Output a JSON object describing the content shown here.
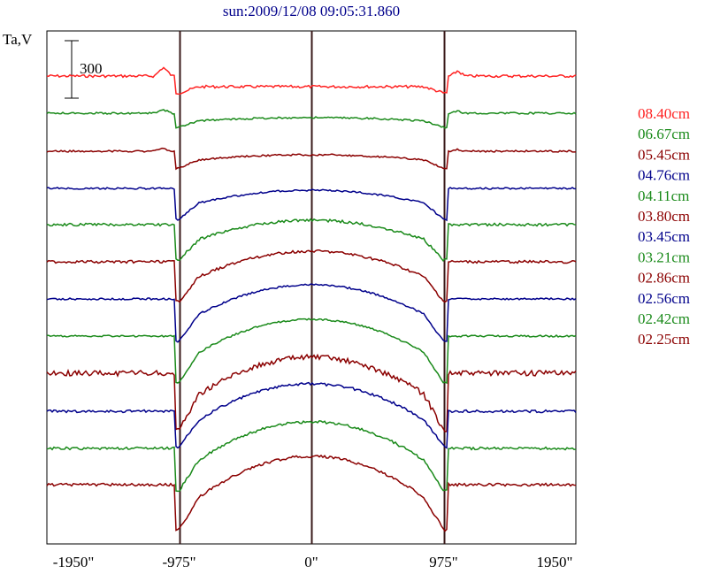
{
  "chart_data": {
    "type": "line",
    "title": "sun:2009/12/08 09:05:31.860",
    "ylabel": "Ta,V",
    "scale_bar_label": "300",
    "scale_bar_value": 300,
    "xlim": [
      -1950,
      1950
    ],
    "x_ticks": [
      -1950,
      -975,
      0,
      975,
      1950
    ],
    "x_tick_labels": [
      "-1950\"",
      "-975\"",
      "0\"",
      "975\"",
      "1950\""
    ],
    "vertical_markers": [
      -975,
      0,
      975
    ],
    "legend_position": "right",
    "colors": {
      "red": "#ff2222",
      "green": "#1a8a1a",
      "maroon": "#8b0000",
      "navy": "#00008b",
      "axis": "#000000",
      "marker": "#3a1a1a",
      "title": "#00008b"
    },
    "series": [
      {
        "name": "08.40cm",
        "color": "red",
        "baseline": 86,
        "offlimb": 0,
        "depth": 12,
        "dome": 0,
        "noise": 3,
        "bump": 10
      },
      {
        "name": "06.67cm",
        "color": "green",
        "baseline": 128,
        "offlimb": 0,
        "depth": 10,
        "dome": 5,
        "noise": 2,
        "bump": 4
      },
      {
        "name": "05.45cm",
        "color": "maroon",
        "baseline": 171,
        "offlimb": 0,
        "depth": 12,
        "dome": 8,
        "noise": 2,
        "bump": 3
      },
      {
        "name": "04.76cm",
        "color": "navy",
        "baseline": 213,
        "offlimb": 0,
        "depth": 22,
        "dome": 20,
        "noise": 2,
        "bump": 0
      },
      {
        "name": "04.11cm",
        "color": "green",
        "baseline": 254,
        "offlimb": 0,
        "depth": 25,
        "dome": 30,
        "noise": 3,
        "bump": 0
      },
      {
        "name": "03.80cm",
        "color": "maroon",
        "baseline": 296,
        "offlimb": 0,
        "depth": 28,
        "dome": 40,
        "noise": 3,
        "bump": 0
      },
      {
        "name": "03.45cm",
        "color": "navy",
        "baseline": 338,
        "offlimb": 0,
        "depth": 30,
        "dome": 46,
        "noise": 2,
        "bump": 0
      },
      {
        "name": "03.21cm",
        "color": "green",
        "baseline": 380,
        "offlimb": 0,
        "depth": 33,
        "dome": 52,
        "noise": 2,
        "bump": 0
      },
      {
        "name": "02.86cm",
        "color": "maroon",
        "baseline": 422,
        "offlimb": 0,
        "depth": 40,
        "dome": 58,
        "noise": 6,
        "bump": 0
      },
      {
        "name": "02.56cm",
        "color": "navy",
        "baseline": 465,
        "offlimb": 0,
        "depth": 25,
        "dome": 56,
        "noise": 3,
        "bump": 0
      },
      {
        "name": "02.42cm",
        "color": "green",
        "baseline": 507,
        "offlimb": 0,
        "depth": 30,
        "dome": 60,
        "noise": 3,
        "bump": 0
      },
      {
        "name": "02.25cm",
        "color": "maroon",
        "baseline": 548,
        "offlimb": 0,
        "depth": 32,
        "dome": 64,
        "noise": 3,
        "bump": 0
      }
    ]
  }
}
